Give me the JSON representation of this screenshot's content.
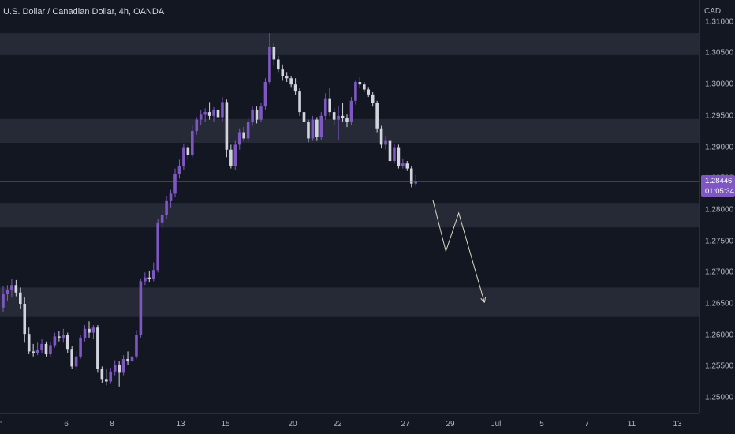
{
  "chart_title": "U.S. Dollar / Canadian Dollar, 4h, OANDA",
  "y_axis": {
    "currency": "CAD",
    "ticks": [
      "1.31000",
      "1.30500",
      "1.30000",
      "1.29500",
      "1.29000",
      "1.28500",
      "1.28000",
      "1.27500",
      "1.27000",
      "1.26500",
      "1.26000",
      "1.25500",
      "1.25000"
    ]
  },
  "x_axis": {
    "ticks": [
      "n",
      "6",
      "8",
      "13",
      "15",
      "20",
      "22",
      "27",
      "29",
      "Jul",
      "5",
      "7",
      "11",
      "13"
    ]
  },
  "last_price": {
    "price": "1.28446",
    "countdown": "01:05:34"
  },
  "colors": {
    "background": "#131722",
    "up_candle": "#7e57c2",
    "down_candle": "#d1d4dc",
    "zone": "#2a2e39",
    "projection": "#d8d8c0"
  },
  "chart_data": {
    "type": "candlestick",
    "symbol": "U.S. Dollar / Canadian Dollar",
    "timeframe": "4h",
    "source": "OANDA",
    "ylim": [
      1.2475,
      1.3135
    ],
    "zones": [
      [
        1.3047,
        1.3082
      ],
      [
        1.2907,
        1.2945
      ],
      [
        1.2772,
        1.2811
      ],
      [
        1.2629,
        1.2676
      ]
    ],
    "projection": [
      {
        "x_index": 100,
        "y": 1.2815
      },
      {
        "x_index": 103,
        "y": 1.2734
      },
      {
        "x_index": 106,
        "y": 1.2795
      },
      {
        "x_index": 112,
        "y": 1.2652
      }
    ],
    "candles": [
      [
        1.2644,
        1.2678,
        1.2636,
        1.2666
      ],
      [
        1.2666,
        1.268,
        1.2654,
        1.2672
      ],
      [
        1.2672,
        1.269,
        1.266,
        1.268
      ],
      [
        1.268,
        1.2688,
        1.2662,
        1.2668
      ],
      [
        1.2668,
        1.2676,
        1.2642,
        1.265
      ],
      [
        1.265,
        1.266,
        1.2588,
        1.2602
      ],
      [
        1.2602,
        1.2612,
        1.257,
        1.2574
      ],
      [
        1.2574,
        1.2586,
        1.2566,
        1.2572
      ],
      [
        1.2572,
        1.2588,
        1.2568,
        1.2576
      ],
      [
        1.2576,
        1.2594,
        1.2572,
        1.2586
      ],
      [
        1.2586,
        1.259,
        1.2566,
        1.257
      ],
      [
        1.257,
        1.259,
        1.2566,
        1.2584
      ],
      [
        1.2584,
        1.2604,
        1.258,
        1.2598
      ],
      [
        1.2598,
        1.2606,
        1.259,
        1.2596
      ],
      [
        1.2596,
        1.261,
        1.2588,
        1.26
      ],
      [
        1.26,
        1.2604,
        1.2572,
        1.2578
      ],
      [
        1.2578,
        1.2582,
        1.2546,
        1.255
      ],
      [
        1.255,
        1.2574,
        1.2544,
        1.2566
      ],
      [
        1.2566,
        1.26,
        1.2562,
        1.2596
      ],
      [
        1.2596,
        1.2616,
        1.259,
        1.261
      ],
      [
        1.261,
        1.2622,
        1.2596,
        1.2604
      ],
      [
        1.2604,
        1.2616,
        1.2594,
        1.2612
      ],
      [
        1.2612,
        1.2616,
        1.254,
        1.2546
      ],
      [
        1.2546,
        1.255,
        1.2524,
        1.253
      ],
      [
        1.253,
        1.2546,
        1.252,
        1.2526
      ],
      [
        1.2526,
        1.2548,
        1.2522,
        1.2542
      ],
      [
        1.2542,
        1.256,
        1.2536,
        1.2552
      ],
      [
        1.2552,
        1.2558,
        1.2518,
        1.254
      ],
      [
        1.254,
        1.2568,
        1.2536,
        1.2562
      ],
      [
        1.2562,
        1.2574,
        1.2552,
        1.2558
      ],
      [
        1.2558,
        1.2574,
        1.2554,
        1.2566
      ],
      [
        1.2566,
        1.2608,
        1.2562,
        1.26
      ],
      [
        1.26,
        1.269,
        1.2596,
        1.2686
      ],
      [
        1.2686,
        1.27,
        1.268,
        1.2692
      ],
      [
        1.2692,
        1.2702,
        1.2684,
        1.269
      ],
      [
        1.269,
        1.2716,
        1.2686,
        1.2704
      ],
      [
        1.2704,
        1.2786,
        1.27,
        1.278
      ],
      [
        1.278,
        1.28,
        1.277,
        1.2792
      ],
      [
        1.2792,
        1.2822,
        1.2786,
        1.2814
      ],
      [
        1.2814,
        1.2832,
        1.2804,
        1.2826
      ],
      [
        1.2826,
        1.2866,
        1.282,
        1.2858
      ],
      [
        1.2858,
        1.288,
        1.285,
        1.287
      ],
      [
        1.287,
        1.2906,
        1.2864,
        1.29
      ],
      [
        1.29,
        1.2904,
        1.288,
        1.2888
      ],
      [
        1.2888,
        1.2934,
        1.2884,
        1.2926
      ],
      [
        1.2926,
        1.2948,
        1.292,
        1.2944
      ],
      [
        1.2944,
        1.296,
        1.2936,
        1.2952
      ],
      [
        1.2952,
        1.2962,
        1.294,
        1.2956
      ],
      [
        1.2956,
        1.2972,
        1.2944,
        1.295
      ],
      [
        1.295,
        1.2964,
        1.294,
        1.296
      ],
      [
        1.296,
        1.2968,
        1.2944,
        1.2948
      ],
      [
        1.2948,
        1.298,
        1.294,
        1.2972
      ],
      [
        1.2972,
        1.2976,
        1.2884,
        1.2896
      ],
      [
        1.2896,
        1.2904,
        1.2866,
        1.287
      ],
      [
        1.287,
        1.291,
        1.2864,
        1.2904
      ],
      [
        1.2904,
        1.293,
        1.2896,
        1.2924
      ],
      [
        1.2924,
        1.2932,
        1.291,
        1.2914
      ],
      [
        1.2914,
        1.2948,
        1.2908,
        1.294
      ],
      [
        1.294,
        1.2966,
        1.2934,
        1.296
      ],
      [
        1.296,
        1.2966,
        1.2938,
        1.2944
      ],
      [
        1.2944,
        1.297,
        1.294,
        1.2966
      ],
      [
        1.2966,
        1.301,
        1.296,
        1.3004
      ],
      [
        1.3004,
        1.3082,
        1.3,
        1.306
      ],
      [
        1.306,
        1.3066,
        1.303,
        1.304
      ],
      [
        1.304,
        1.3046,
        1.302,
        1.3024
      ],
      [
        1.3024,
        1.3032,
        1.3006,
        1.3014
      ],
      [
        1.3014,
        1.302,
        1.3004,
        1.301
      ],
      [
        1.301,
        1.3014,
        1.2996,
        1.3
      ],
      [
        1.3,
        1.301,
        1.2984,
        1.299
      ],
      [
        1.299,
        1.2994,
        1.295,
        1.2956
      ],
      [
        1.2956,
        1.2962,
        1.293,
        1.294
      ],
      [
        1.294,
        1.2944,
        1.2908,
        1.2914
      ],
      [
        1.2914,
        1.295,
        1.291,
        1.2944
      ],
      [
        1.2944,
        1.2948,
        1.291,
        1.2916
      ],
      [
        1.2916,
        1.2956,
        1.2912,
        1.295
      ],
      [
        1.295,
        1.2986,
        1.2944,
        1.2978
      ],
      [
        1.2978,
        1.2994,
        1.295,
        1.2956
      ],
      [
        1.2956,
        1.2962,
        1.2936,
        1.2944
      ],
      [
        1.2944,
        1.2966,
        1.2912,
        1.295
      ],
      [
        1.295,
        1.297,
        1.294,
        1.2946
      ],
      [
        1.2946,
        1.2952,
        1.2932,
        1.294
      ],
      [
        1.294,
        1.298,
        1.2936,
        1.2974
      ],
      [
        1.2974,
        1.3006,
        1.2968,
        1.3004
      ],
      [
        1.3004,
        1.3012,
        1.2994,
        1.3
      ],
      [
        1.3,
        1.3004,
        1.2988,
        1.2992
      ],
      [
        1.2992,
        1.2996,
        1.298,
        1.2984
      ],
      [
        1.2984,
        1.2988,
        1.2966,
        1.297
      ],
      [
        1.297,
        1.2974,
        1.2924,
        1.293
      ],
      [
        1.293,
        1.2934,
        1.2898,
        1.2904
      ],
      [
        1.2904,
        1.2918,
        1.2896,
        1.291
      ],
      [
        1.291,
        1.2916,
        1.2872,
        1.2878
      ],
      [
        1.2878,
        1.2906,
        1.2874,
        1.29
      ],
      [
        1.29,
        1.2904,
        1.2866,
        1.287
      ],
      [
        1.287,
        1.2882,
        1.2866,
        1.2874
      ],
      [
        1.2874,
        1.2878,
        1.2862,
        1.2866
      ],
      [
        1.2866,
        1.287,
        1.2836,
        1.2842
      ],
      [
        1.2842,
        1.2856,
        1.2838,
        1.2845
      ]
    ]
  }
}
